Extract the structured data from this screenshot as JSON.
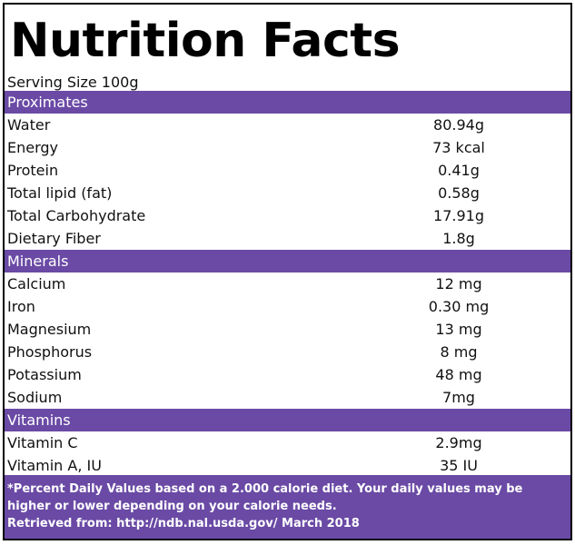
{
  "title": "Nutrition Facts",
  "serving_size": "Serving Size 100g",
  "colors": {
    "section_bar": "#6a4aa5",
    "footer": "#6a4aa5",
    "border": "#000000"
  },
  "sections": [
    {
      "label": "Proximates",
      "rows": [
        {
          "name": "Water",
          "value": "80.94g"
        },
        {
          "name": "Energy",
          "value": "73 kcal"
        },
        {
          "name": "Protein",
          "value": "0.41g"
        },
        {
          "name": "Total lipid (fat)",
          "value": "0.58g"
        },
        {
          "name": "Total Carbohydrate",
          "value": "17.91g"
        },
        {
          "name": "Dietary Fiber",
          "value": "1.8g"
        }
      ]
    },
    {
      "label": "Minerals",
      "rows": [
        {
          "name": "Calcium",
          "value": "12 mg"
        },
        {
          "name": "Iron",
          "value": "0.30 mg"
        },
        {
          "name": "Magnesium",
          "value": "13 mg"
        },
        {
          "name": "Phosphorus",
          "value": "8 mg"
        },
        {
          "name": "Potassium",
          "value": "48 mg"
        },
        {
          "name": "Sodium",
          "value": "7mg"
        }
      ]
    },
    {
      "label": "Vitamins",
      "rows": [
        {
          "name": "Vitamin C",
          "value": "2.9mg"
        },
        {
          "name": "Vitamin A, IU",
          "value": "35 IU"
        }
      ]
    }
  ],
  "footer": {
    "disclaimer": "*Percent Daily Values based on a 2.000 calorie diet. Your daily values may be higher or lower depending on your calorie needs.",
    "source": "Retrieved from: http://ndb.nal.usda.gov/ March 2018"
  }
}
